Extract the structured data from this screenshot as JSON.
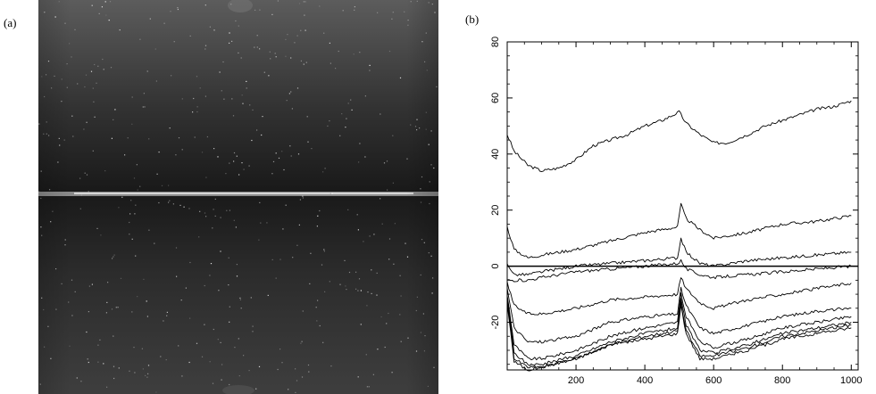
{
  "figure": {
    "panel_a_label": "(a)",
    "panel_b_label": "(b)"
  },
  "image_panel": {
    "description_icon": "ccd-frame-image",
    "colors": {
      "dark": "#1c1c1c",
      "mid": "#3a3a3a",
      "light": "#6a6a6a",
      "seam": "#d0d0d0"
    }
  },
  "chart_data": {
    "type": "line",
    "title": "",
    "xlabel": "",
    "ylabel": "",
    "xlim": [
      0,
      1020
    ],
    "ylim": [
      -37,
      80
    ],
    "xticks": [
      200,
      400,
      600,
      800,
      1000
    ],
    "yticks": [
      -20,
      0,
      20,
      40,
      60,
      80
    ],
    "zero_line": true,
    "grid": false,
    "series": [
      {
        "x": [
          0,
          20,
          60,
          100,
          150,
          200,
          250,
          300,
          350,
          400,
          450,
          500,
          520,
          560,
          600,
          640,
          700,
          750,
          800,
          850,
          900,
          950,
          1000
        ],
        "y": [
          47,
          41,
          36,
          34,
          35,
          38,
          43,
          45,
          47,
          50,
          52,
          55,
          51,
          47,
          44,
          44,
          47,
          50,
          52,
          54,
          56,
          57,
          59
        ]
      },
      {
        "x": [
          0,
          20,
          60,
          100,
          200,
          300,
          400,
          495,
          505,
          520,
          560,
          600,
          700,
          800,
          900,
          1000
        ],
        "y": [
          14,
          6,
          3,
          4,
          6,
          9,
          12,
          14,
          22,
          17,
          13,
          10,
          12,
          15,
          16,
          18
        ]
      },
      {
        "x": [
          0,
          20,
          60,
          100,
          200,
          300,
          400,
          495,
          505,
          520,
          560,
          600,
          700,
          800,
          900,
          1000
        ],
        "y": [
          1,
          -3,
          -3,
          -2,
          0,
          1,
          2,
          3,
          10,
          5,
          1,
          0,
          2,
          3,
          4,
          5
        ]
      },
      {
        "x": [
          0,
          20,
          60,
          100,
          200,
          300,
          400,
          495,
          505,
          520,
          560,
          600,
          700,
          800,
          900,
          1000
        ],
        "y": [
          -5,
          -5,
          -5,
          -4,
          -2,
          -1,
          0,
          1,
          2,
          -1,
          -3,
          -4,
          -3,
          -2,
          -1,
          0
        ]
      },
      {
        "x": [
          0,
          20,
          60,
          100,
          200,
          300,
          400,
          495,
          505,
          520,
          560,
          600,
          700,
          800,
          900,
          1000
        ],
        "y": [
          -6,
          -14,
          -17,
          -17,
          -15,
          -12,
          -11,
          -10,
          -4,
          -8,
          -13,
          -15,
          -12,
          -10,
          -8,
          -6
        ]
      },
      {
        "x": [
          0,
          20,
          60,
          100,
          200,
          300,
          400,
          495,
          505,
          520,
          560,
          600,
          700,
          800,
          900,
          1000
        ],
        "y": [
          -8,
          -22,
          -27,
          -27,
          -25,
          -20,
          -18,
          -17,
          -8,
          -14,
          -22,
          -24,
          -21,
          -18,
          -16,
          -15
        ]
      },
      {
        "x": [
          0,
          20,
          60,
          100,
          200,
          300,
          400,
          495,
          505,
          520,
          560,
          600,
          700,
          800,
          900,
          1000
        ],
        "y": [
          -10,
          -28,
          -33,
          -33,
          -30,
          -25,
          -22,
          -20,
          -10,
          -18,
          -27,
          -29,
          -26,
          -22,
          -20,
          -18
        ]
      },
      {
        "x": [
          0,
          20,
          60,
          100,
          200,
          300,
          400,
          495,
          505,
          520,
          560,
          600,
          700,
          800,
          900,
          1000
        ],
        "y": [
          -11,
          -31,
          -35,
          -35,
          -32,
          -27,
          -24,
          -22,
          -12,
          -21,
          -30,
          -31,
          -28,
          -24,
          -22,
          -20
        ]
      },
      {
        "x": [
          0,
          20,
          60,
          100,
          200,
          300,
          400,
          495,
          505,
          520,
          560,
          600,
          700,
          800,
          900,
          1000
        ],
        "y": [
          -12,
          -33,
          -36,
          -36,
          -33,
          -28,
          -25,
          -23,
          -13,
          -23,
          -32,
          -32,
          -29,
          -25,
          -23,
          -21
        ]
      },
      {
        "x": [
          0,
          20,
          60,
          100,
          200,
          300,
          400,
          495,
          505,
          520,
          560,
          600,
          700,
          800,
          900,
          1000
        ],
        "y": [
          -13,
          -34,
          -37,
          -36,
          -33,
          -28,
          -26,
          -24,
          -14,
          -24,
          -33,
          -33,
          -30,
          -26,
          -24,
          -22
        ]
      }
    ]
  }
}
